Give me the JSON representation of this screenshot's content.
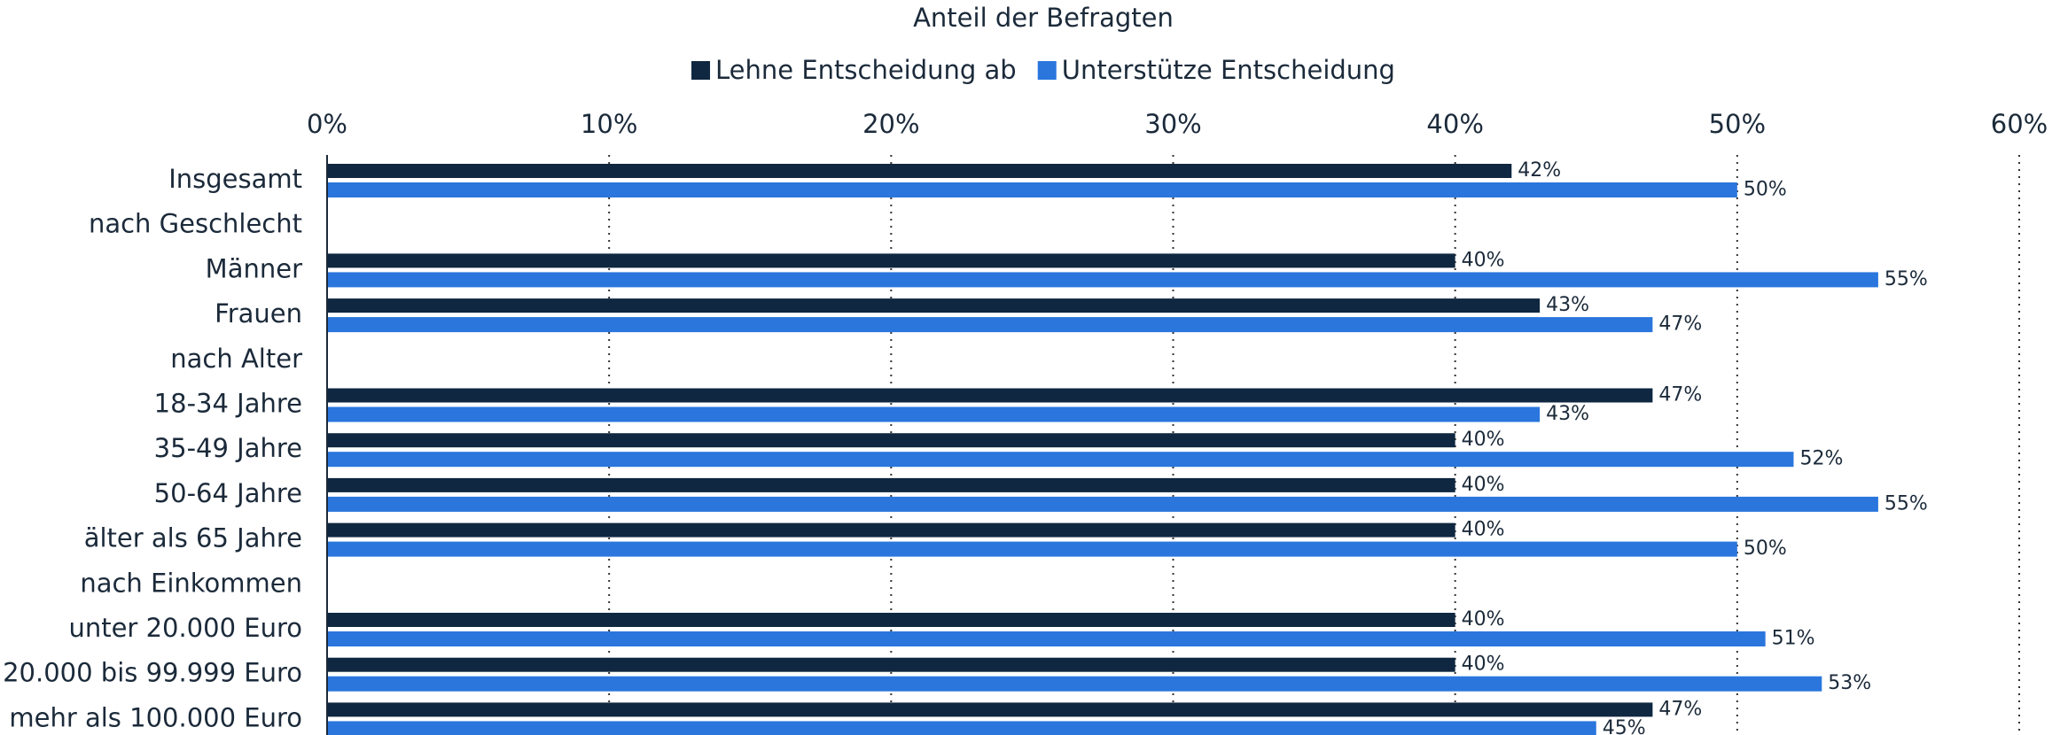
{
  "chart_data": {
    "type": "bar",
    "orientation": "horizontal",
    "xlabel": "Anteil der Befragten",
    "categories": [
      "Insgesamt",
      "nach Geschlecht",
      "Männer",
      "Frauen",
      "nach Alter",
      "18-34 Jahre",
      "35-49 Jahre",
      "50-64 Jahre",
      "älter als 65 Jahre",
      "nach Einkommen",
      "unter 20.000 Euro",
      "20.000 bis 99.999 Euro",
      "mehr als 100.000 Euro"
    ],
    "series": [
      {
        "name": "Lehne Entscheidung ab",
        "color": "#0f2740",
        "values": [
          42,
          null,
          40,
          43,
          null,
          47,
          40,
          40,
          40,
          null,
          40,
          40,
          47
        ],
        "value_labels": [
          "42%",
          null,
          "40%",
          "43%",
          null,
          "47%",
          "40%",
          "40%",
          "40%",
          null,
          "40%",
          "40%",
          "47%"
        ]
      },
      {
        "name": "Unterstütze Entscheidung",
        "color": "#2a76dd",
        "values": [
          50,
          null,
          55,
          47,
          null,
          43,
          52,
          55,
          50,
          null,
          51,
          53,
          45
        ],
        "value_labels": [
          "50%",
          null,
          "55%",
          "47%",
          null,
          "43%",
          "52%",
          "55%",
          "50%",
          null,
          "51%",
          "53%",
          "45%"
        ]
      }
    ],
    "xlim": [
      0,
      60
    ],
    "xticks": [
      {
        "value": 0,
        "label": "0%"
      },
      {
        "value": 10,
        "label": "10%"
      },
      {
        "value": 20,
        "label": "20%"
      },
      {
        "value": 30,
        "label": "30%"
      },
      {
        "value": 40,
        "label": "40%"
      },
      {
        "value": 50,
        "label": "50%"
      },
      {
        "value": 60,
        "label": "60%"
      }
    ],
    "grid": true,
    "legend": "top"
  }
}
